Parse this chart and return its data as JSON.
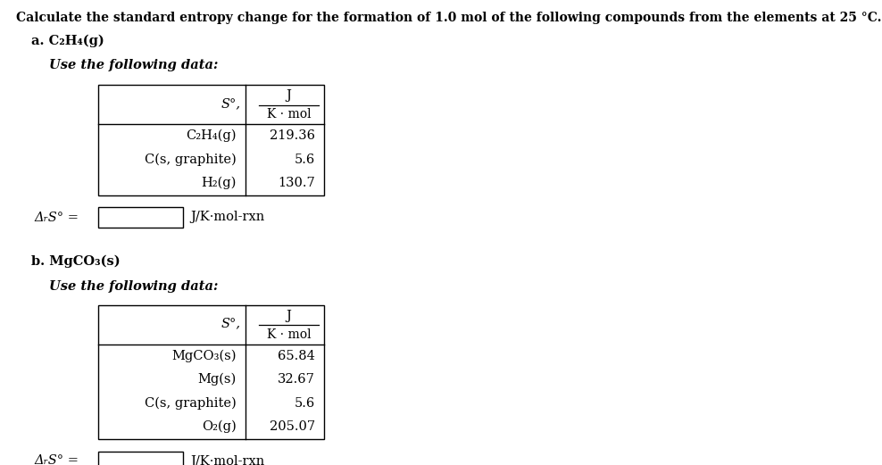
{
  "title": "Calculate the standard entropy change for the formation of 1.0 mol of the following compounds from the elements at 25 °C.",
  "part_a_label": "a. C₂H₄(g)",
  "part_a_subheader": "Use the following data:",
  "part_a_col_header_s": "S°,",
  "part_a_col_header_top": "J",
  "part_a_col_header_bottom": "K · mol",
  "part_a_rows": [
    [
      "C₂H₄(g)",
      "219.36"
    ],
    [
      "C(s, graphite)",
      "5.6"
    ],
    [
      "H₂(g)",
      "130.7"
    ]
  ],
  "part_a_answer_label": "ΔᵣS° =",
  "part_a_answer_unit": "J/K·mol-rxn",
  "part_b_label": "b. MgCO₃(s)",
  "part_b_subheader": "Use the following data:",
  "part_b_col_header_s": "S°,",
  "part_b_col_header_top": "J",
  "part_b_col_header_bottom": "K · mol",
  "part_b_rows": [
    [
      "MgCO₃(s)",
      "65.84"
    ],
    [
      "Mg(s)",
      "32.67"
    ],
    [
      "C(s, graphite)",
      "5.6"
    ],
    [
      "O₂(g)",
      "205.07"
    ]
  ],
  "part_b_answer_label": "ΔᵣS° =",
  "part_b_answer_unit": "J/K·mol-rxn",
  "bg_color": "#ffffff",
  "text_color": "#000000",
  "border_color": "#000000",
  "title_fontsize": 10,
  "body_fontsize": 10.5,
  "table_fontsize": 10.5,
  "answer_fontsize": 10.5
}
